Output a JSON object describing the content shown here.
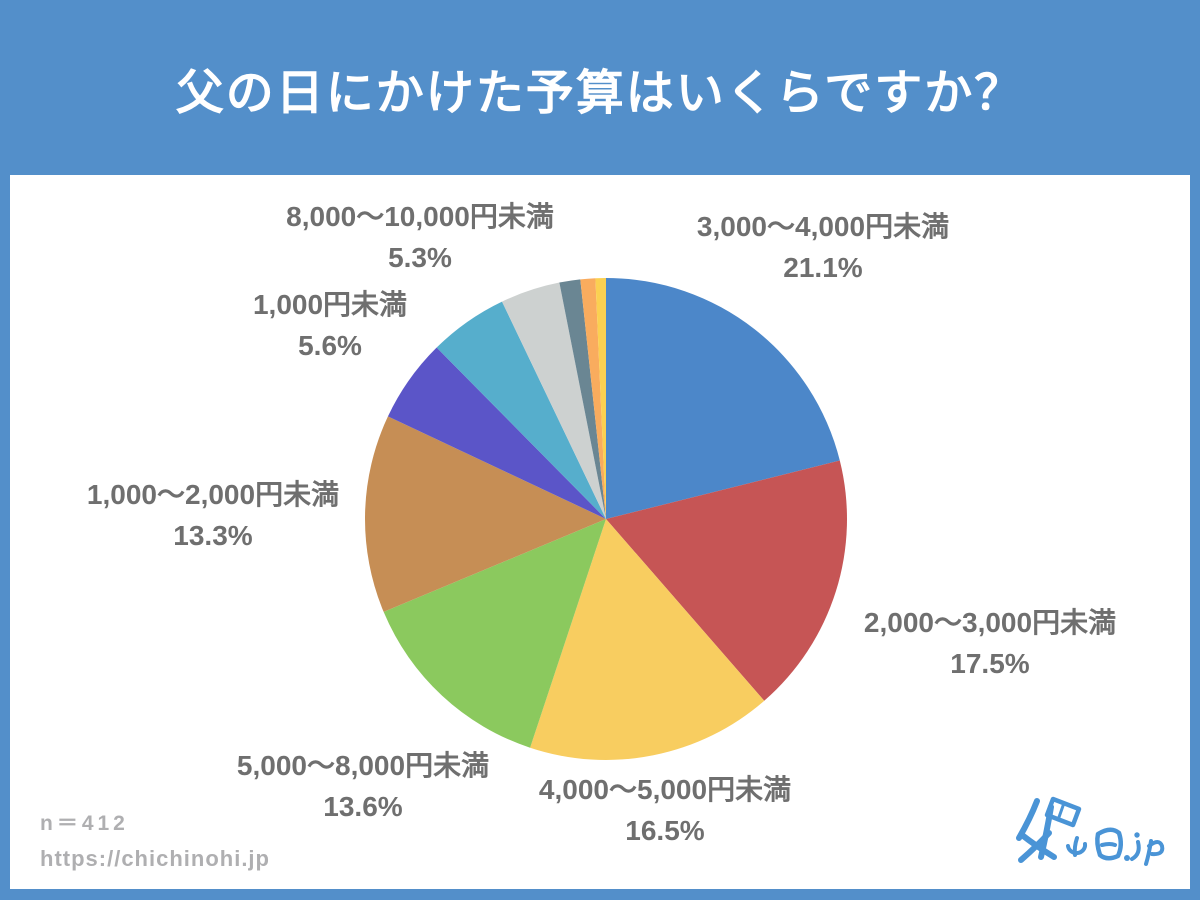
{
  "header": {
    "title": "父の日にかけた予算はいくらですか？",
    "background": "#538FCA",
    "text_color": "#FFFFFF"
  },
  "footer": {
    "sample_size": "n＝412",
    "url": "https://chichinohi.jp",
    "text_color": "#AFAFB1"
  },
  "logo": {
    "text": "父の日.jp",
    "color": "#4A94D6"
  },
  "colors": {
    "frame": "#538FCA",
    "panel": "#FFFFFF",
    "label_text": "#6F6F6F"
  },
  "chart_data": {
    "type": "pie",
    "title": "父の日にかけた予算はいくらですか？",
    "sample_size": 412,
    "start_angle_deg": 0,
    "direction": "clockwise",
    "legend_position": "labels-around-pie",
    "slices": [
      {
        "label": "3,000〜4,000円未満",
        "pct": "21.1%",
        "value": 21.1,
        "color": "#4C87C9",
        "labeled": true
      },
      {
        "label": "2,000〜3,000円未満",
        "pct": "17.5%",
        "value": 17.5,
        "color": "#C65555",
        "labeled": true
      },
      {
        "label": "4,000〜5,000円未満",
        "pct": "16.5%",
        "value": 16.5,
        "color": "#F8CD60",
        "labeled": true
      },
      {
        "label": "5,000〜8,000円未満",
        "pct": "13.6%",
        "value": 13.6,
        "color": "#8BC95E",
        "labeled": true
      },
      {
        "label": "1,000〜2,000円未満",
        "pct": "13.3%",
        "value": 13.3,
        "color": "#C68E55",
        "labeled": true
      },
      {
        "label": "1,000円未満",
        "pct": "5.6%",
        "value": 5.6,
        "color": "#5B55C8",
        "labeled": true
      },
      {
        "label": "8,000〜10,000円未満",
        "pct": "5.3%",
        "value": 5.3,
        "color": "#56AECC",
        "labeled": true
      },
      {
        "label": "",
        "pct": "",
        "value": 4.0,
        "color": "#CDD1D0",
        "labeled": false
      },
      {
        "label": "",
        "pct": "",
        "value": 1.4,
        "color": "#6A8693",
        "labeled": false
      },
      {
        "label": "",
        "pct": "",
        "value": 1.0,
        "color": "#F9AC5E",
        "labeled": false
      },
      {
        "label": "",
        "pct": "",
        "value": 0.7,
        "color": "#FBD051",
        "labeled": false
      }
    ]
  }
}
